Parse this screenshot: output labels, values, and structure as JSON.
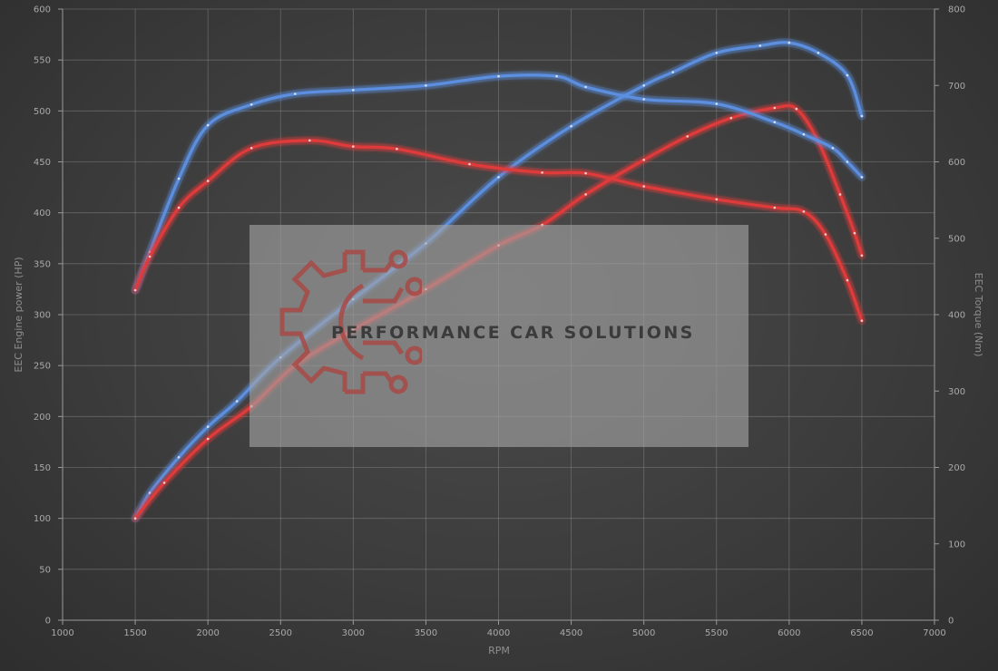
{
  "chart_data": {
    "type": "line",
    "title": "",
    "xlabel": "RPM",
    "ylabel_left": "EEC Engine power (HP)",
    "ylabel_right": "EEC Torque (Nm)",
    "xlim": [
      1000,
      7000
    ],
    "xticks": [
      "1000",
      "1500",
      "2000",
      "2500",
      "3000",
      "3500",
      "4000",
      "4500",
      "5000",
      "5500",
      "6000",
      "6500",
      "7000"
    ],
    "ylim_left": [
      0,
      600
    ],
    "yticks_left": [
      "0",
      "50",
      "100",
      "150",
      "200",
      "250",
      "300",
      "350",
      "400",
      "450",
      "500",
      "550",
      "600"
    ],
    "ylim_right": [
      0,
      800
    ],
    "yticks_right": [
      "0",
      "100",
      "200",
      "300",
      "400",
      "500",
      "600",
      "700",
      "800"
    ],
    "grid": true,
    "series": [
      {
        "axis": "left",
        "color": "#5b8fe0",
        "x": [
          1500,
          1600,
          1800,
          2000,
          2200,
          2500,
          3000,
          3500,
          4000,
          4500,
          5000,
          5200,
          5500,
          5800,
          6000,
          6200,
          6400,
          6500
        ],
        "y": [
          100,
          125,
          160,
          190,
          215,
          258,
          315,
          370,
          435,
          485,
          525,
          538,
          557,
          564,
          567,
          557,
          535,
          495
        ]
      },
      {
        "axis": "left",
        "color": "#e03a3a",
        "x": [
          1500,
          1700,
          2000,
          2300,
          2600,
          3000,
          3500,
          4000,
          4300,
          4600,
          5000,
          5300,
          5600,
          5900,
          6050,
          6200,
          6350,
          6450,
          6500
        ],
        "y": [
          100,
          135,
          178,
          210,
          250,
          285,
          325,
          368,
          388,
          418,
          452,
          475,
          493,
          503,
          502,
          470,
          418,
          380,
          358
        ]
      },
      {
        "axis": "right",
        "color": "#5b8fe0",
        "x": [
          1500,
          1600,
          1800,
          2000,
          2300,
          2600,
          3000,
          3500,
          4000,
          4400,
          4600,
          5000,
          5500,
          5900,
          6100,
          6300,
          6400,
          6500
        ],
        "y": [
          432,
          482,
          578,
          648,
          675,
          689,
          694,
          700,
          712,
          712,
          698,
          682,
          676,
          652,
          636,
          618,
          600,
          580
        ]
      },
      {
        "axis": "right",
        "color": "#e03a3a",
        "x": [
          1500,
          1600,
          1800,
          2000,
          2300,
          2700,
          3000,
          3300,
          3800,
          4300,
          4600,
          5000,
          5500,
          5900,
          6100,
          6250,
          6400,
          6500
        ],
        "y": [
          432,
          476,
          540,
          575,
          618,
          628,
          620,
          617,
          597,
          586,
          585,
          568,
          551,
          540,
          535,
          505,
          445,
          392
        ]
      }
    ],
    "watermark": "PERFORMANCE CAR SOLUTIONS"
  }
}
